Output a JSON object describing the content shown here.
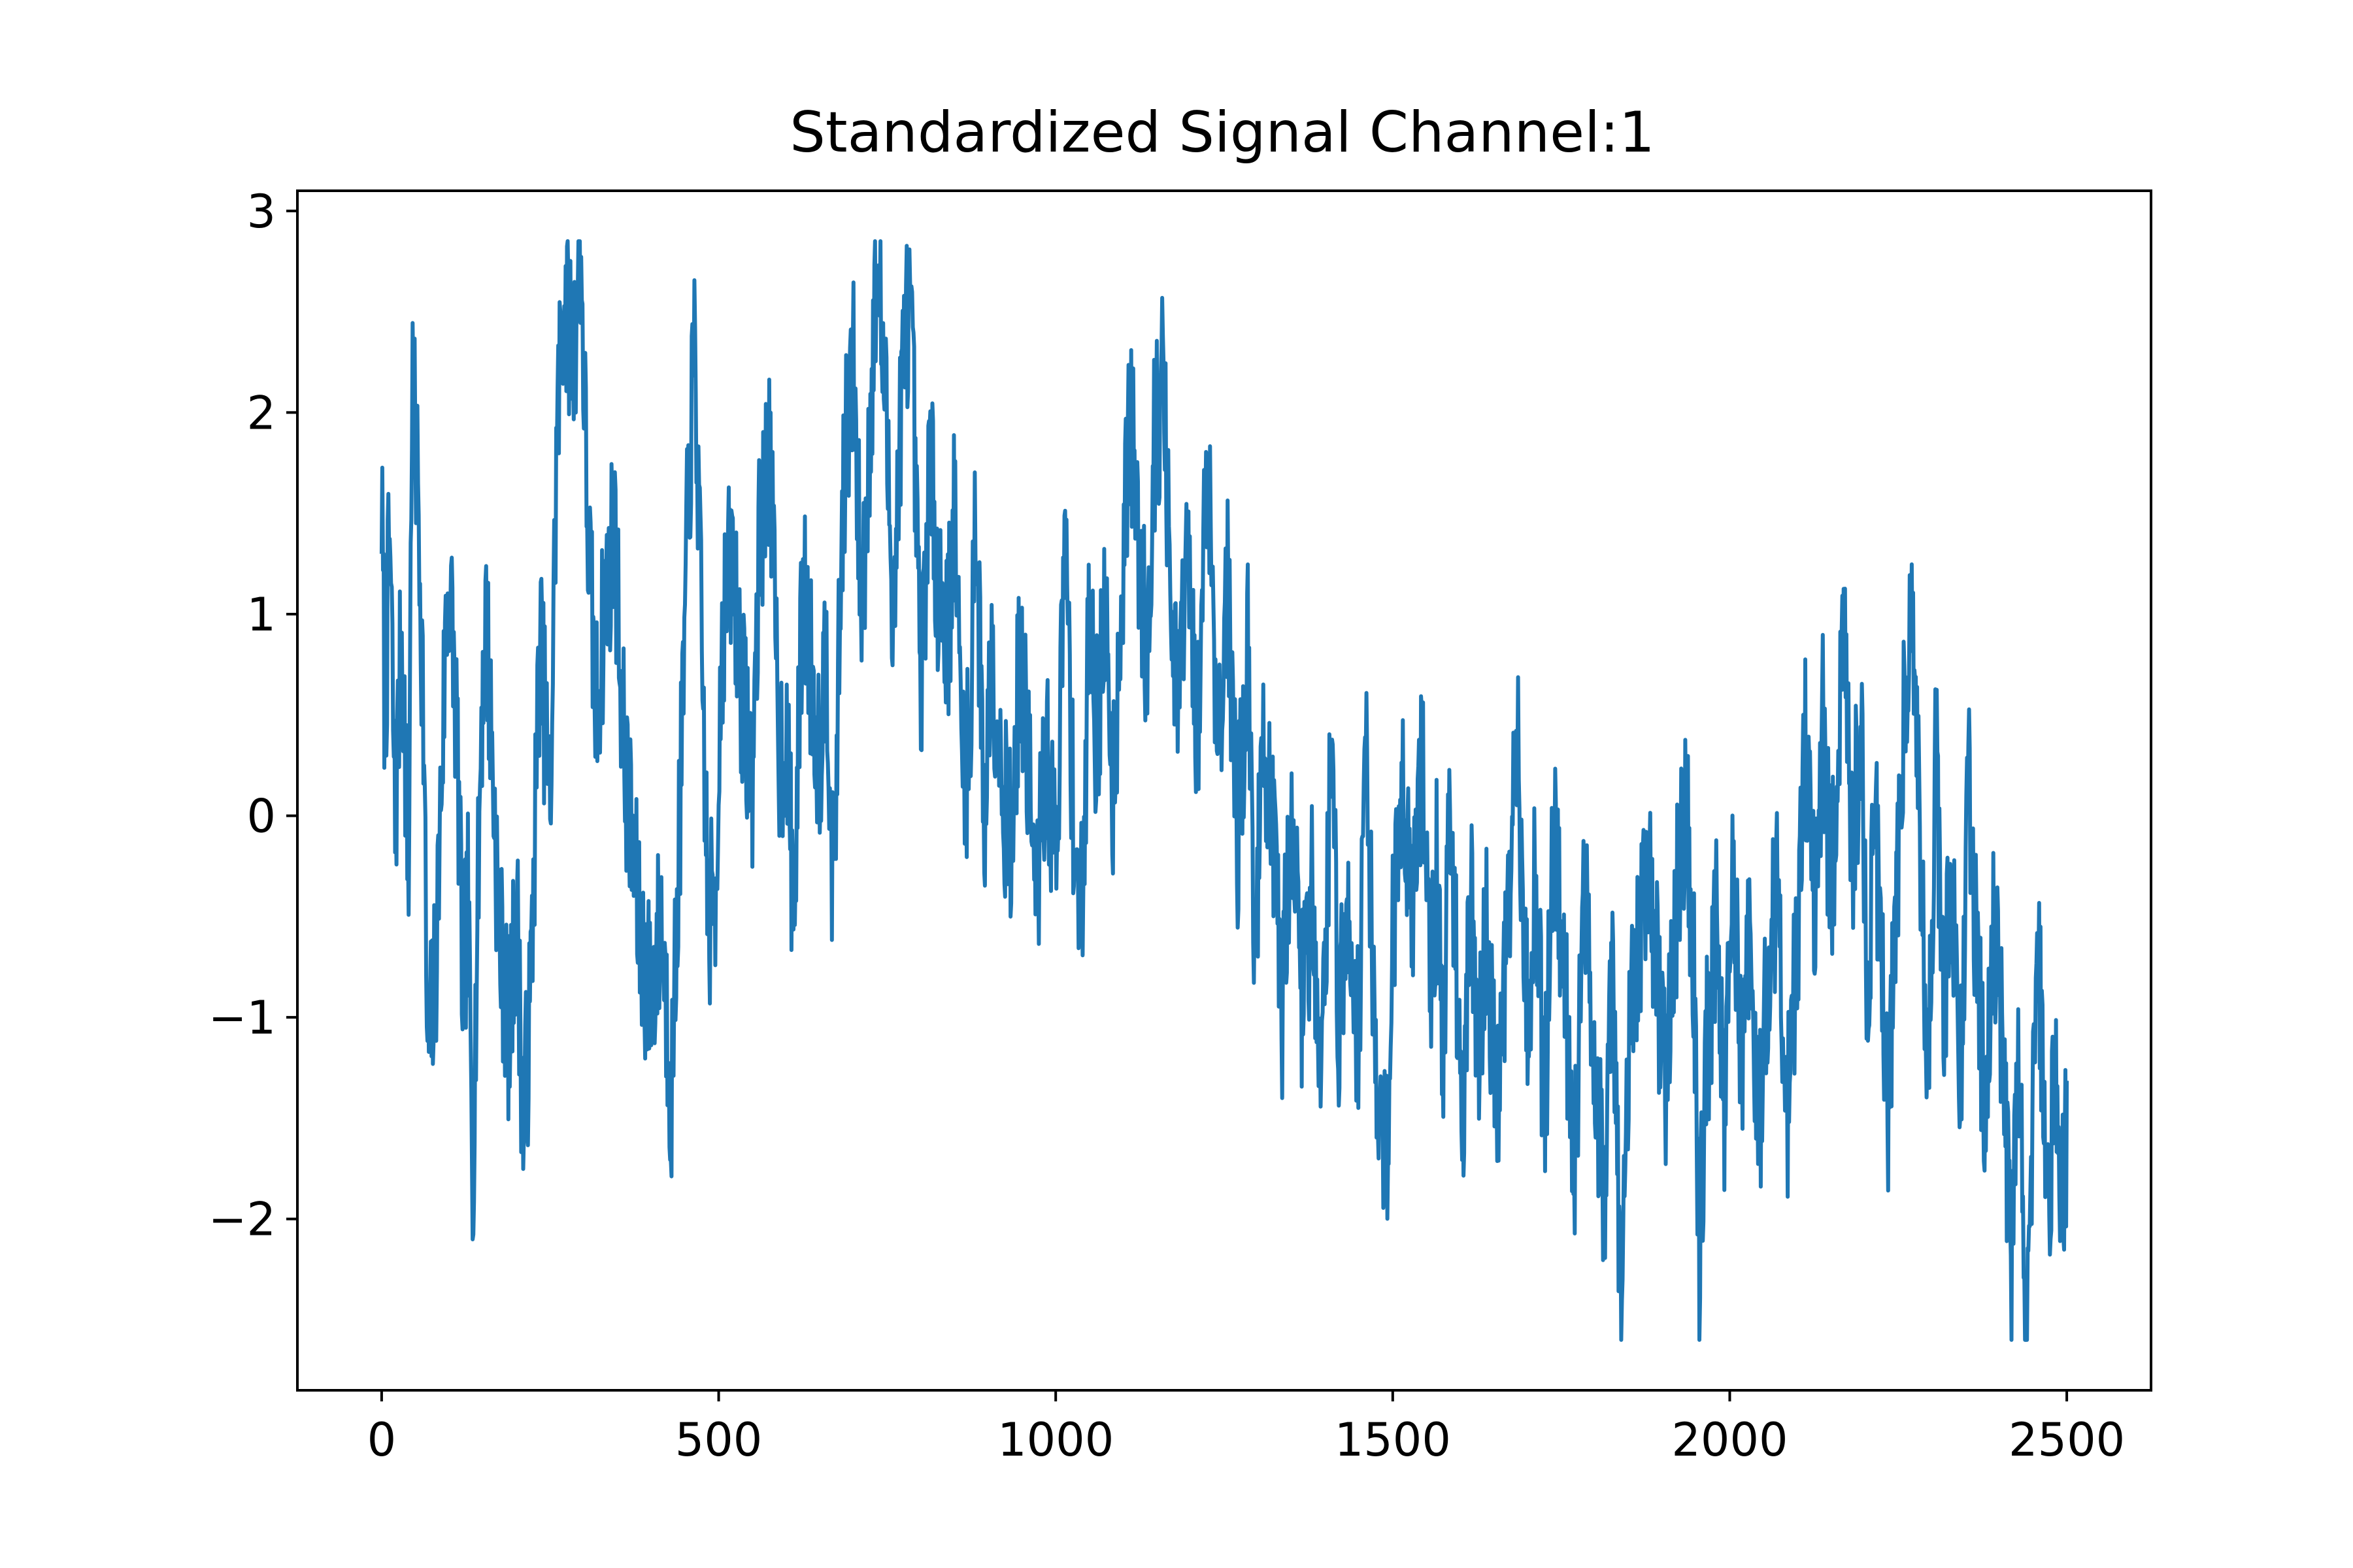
{
  "chart_data": {
    "type": "line",
    "title": "Standardized Signal Channel:1",
    "xlabel": "",
    "ylabel": "",
    "xlim": [
      -125,
      2625
    ],
    "ylim": [
      -2.85,
      3.1
    ],
    "x_ticks": [
      0,
      500,
      1000,
      1500,
      2000,
      2500
    ],
    "x_tick_labels": [
      "0",
      "500",
      "1000",
      "1500",
      "2000",
      "2500"
    ],
    "y_ticks": [
      -2,
      -1,
      0,
      1,
      2,
      3
    ],
    "y_tick_labels": [
      "−2",
      "−1",
      "0",
      "1",
      "2",
      "3"
    ],
    "grid": false,
    "legend": false,
    "series_color": "#1f77b4",
    "x_start": 0,
    "x_step": 1,
    "y_anchors": [
      [
        0,
        1.55
      ],
      [
        5,
        0.45
      ],
      [
        12,
        1.42
      ],
      [
        20,
        -0.05
      ],
      [
        30,
        0.95
      ],
      [
        40,
        -0.35
      ],
      [
        45,
        2.15
      ],
      [
        55,
        1.5
      ],
      [
        62,
        0.5
      ],
      [
        68,
        -1.25
      ],
      [
        80,
        -0.8
      ],
      [
        95,
        0.9
      ],
      [
        100,
        1.2
      ],
      [
        112,
        0.4
      ],
      [
        120,
        -0.85
      ],
      [
        128,
        -0.45
      ],
      [
        135,
        -1.8
      ],
      [
        148,
        0.5
      ],
      [
        155,
        1.0
      ],
      [
        175,
        -0.6
      ],
      [
        190,
        -1.1
      ],
      [
        200,
        -0.4
      ],
      [
        210,
        -1.55
      ],
      [
        220,
        -1.0
      ],
      [
        235,
        0.9
      ],
      [
        250,
        0.0
      ],
      [
        260,
        1.9
      ],
      [
        270,
        2.6
      ],
      [
        285,
        2.3
      ],
      [
        295,
        2.85
      ],
      [
        305,
        1.5
      ],
      [
        318,
        0.5
      ],
      [
        330,
        1.0
      ],
      [
        345,
        1.45
      ],
      [
        360,
        0.3
      ],
      [
        370,
        -0.1
      ],
      [
        385,
        -0.65
      ],
      [
        400,
        -0.9
      ],
      [
        415,
        -0.5
      ],
      [
        430,
        -1.4
      ],
      [
        445,
        0.3
      ],
      [
        455,
        1.6
      ],
      [
        465,
        2.35
      ],
      [
        472,
        1.2
      ],
      [
        485,
        -0.55
      ],
      [
        495,
        -0.4
      ],
      [
        505,
        0.9
      ],
      [
        520,
        1.3
      ],
      [
        535,
        0.6
      ],
      [
        550,
        0.2
      ],
      [
        560,
        1.3
      ],
      [
        575,
        1.85
      ],
      [
        590,
        0.3
      ],
      [
        600,
        0.4
      ],
      [
        612,
        -0.5
      ],
      [
        625,
        1.2
      ],
      [
        640,
        0.6
      ],
      [
        650,
        0.3
      ],
      [
        660,
        0.9
      ],
      [
        670,
        -0.45
      ],
      [
        685,
        1.7
      ],
      [
        700,
        2.2
      ],
      [
        712,
        1.0
      ],
      [
        720,
        1.6
      ],
      [
        735,
        2.75
      ],
      [
        745,
        2.2
      ],
      [
        760,
        1.0
      ],
      [
        770,
        2.0
      ],
      [
        782,
        2.6
      ],
      [
        790,
        1.9
      ],
      [
        800,
        0.5
      ],
      [
        812,
        1.8
      ],
      [
        825,
        1.2
      ],
      [
        840,
        0.9
      ],
      [
        850,
        1.5
      ],
      [
        860,
        0.4
      ],
      [
        872,
        0.2
      ],
      [
        880,
        1.6
      ],
      [
        895,
        -0.05
      ],
      [
        905,
        0.9
      ],
      [
        920,
        0.2
      ],
      [
        935,
        -0.2
      ],
      [
        945,
        0.7
      ],
      [
        960,
        0.3
      ],
      [
        970,
        -0.5
      ],
      [
        985,
        0.3
      ],
      [
        1000,
        -0.2
      ],
      [
        1015,
        1.4
      ],
      [
        1025,
        0.1
      ],
      [
        1040,
        -0.6
      ],
      [
        1050,
        1.2
      ],
      [
        1060,
        0.4
      ],
      [
        1075,
        1.0
      ],
      [
        1085,
        0.1
      ],
      [
        1095,
        0.9
      ],
      [
        1110,
        2.0
      ],
      [
        1122,
        1.4
      ],
      [
        1135,
        0.8
      ],
      [
        1145,
        1.8
      ],
      [
        1160,
        2.2
      ],
      [
        1170,
        1.0
      ],
      [
        1180,
        0.5
      ],
      [
        1195,
        1.3
      ],
      [
        1210,
        0.3
      ],
      [
        1225,
        1.9
      ],
      [
        1240,
        0.4
      ],
      [
        1255,
        1.1
      ],
      [
        1270,
        -0.1
      ],
      [
        1285,
        0.8
      ],
      [
        1295,
        -0.6
      ],
      [
        1310,
        0.4
      ],
      [
        1325,
        -0.3
      ],
      [
        1335,
        -1.0
      ],
      [
        1350,
        0.1
      ],
      [
        1365,
        -0.9
      ],
      [
        1380,
        -0.4
      ],
      [
        1395,
        -1.2
      ],
      [
        1410,
        0.4
      ],
      [
        1420,
        -1.05
      ],
      [
        1435,
        -0.5
      ],
      [
        1450,
        -1.1
      ],
      [
        1460,
        0.5
      ],
      [
        1475,
        -1.3
      ],
      [
        1490,
        -1.75
      ],
      [
        1500,
        -0.6
      ],
      [
        1515,
        0.2
      ],
      [
        1530,
        -0.4
      ],
      [
        1545,
        0.3
      ],
      [
        1555,
        -0.9
      ],
      [
        1565,
        -0.3
      ],
      [
        1575,
        -1.2
      ],
      [
        1585,
        0.05
      ],
      [
        1595,
        -0.8
      ],
      [
        1605,
        -1.4
      ],
      [
        1615,
        -0.35
      ],
      [
        1625,
        -1.2
      ],
      [
        1640,
        -0.6
      ],
      [
        1655,
        -1.5
      ],
      [
        1670,
        -0.5
      ],
      [
        1685,
        0.3
      ],
      [
        1700,
        -1.0
      ],
      [
        1712,
        -0.3
      ],
      [
        1725,
        -1.5
      ],
      [
        1740,
        0.0
      ],
      [
        1755,
        -0.8
      ],
      [
        1770,
        -1.7
      ],
      [
        1785,
        -0.4
      ],
      [
        1800,
        -1.2
      ],
      [
        1815,
        -1.9
      ],
      [
        1825,
        -0.7
      ],
      [
        1840,
        -2.5
      ],
      [
        1852,
        -1.1
      ],
      [
        1865,
        -0.6
      ],
      [
        1880,
        -0.2
      ],
      [
        1892,
        -0.8
      ],
      [
        1905,
        -1.3
      ],
      [
        1920,
        -0.5
      ],
      [
        1935,
        0.1
      ],
      [
        1948,
        -0.9
      ],
      [
        1955,
        -2.2
      ],
      [
        1965,
        -1.2
      ],
      [
        1980,
        -0.6
      ],
      [
        1992,
        -1.4
      ],
      [
        2005,
        -0.3
      ],
      [
        2018,
        -1.2
      ],
      [
        2030,
        -0.6
      ],
      [
        2042,
        -1.7
      ],
      [
        2055,
        -0.8
      ],
      [
        2070,
        -0.3
      ],
      [
        2085,
        -1.5
      ],
      [
        2100,
        -0.6
      ],
      [
        2112,
        0.3
      ],
      [
        2125,
        -0.5
      ],
      [
        2138,
        0.5
      ],
      [
        2150,
        -0.4
      ],
      [
        2160,
        0.2
      ],
      [
        2170,
        0.8
      ],
      [
        2180,
        -0.2
      ],
      [
        2195,
        0.4
      ],
      [
        2205,
        -0.9
      ],
      [
        2215,
        0.0
      ],
      [
        2225,
        -0.6
      ],
      [
        2235,
        -1.5
      ],
      [
        2248,
        -0.3
      ],
      [
        2260,
        0.6
      ],
      [
        2270,
        1.15
      ],
      [
        2282,
        0.0
      ],
      [
        2295,
        -1.4
      ],
      [
        2305,
        0.4
      ],
      [
        2318,
        -0.9
      ],
      [
        2330,
        -0.3
      ],
      [
        2342,
        -1.3
      ],
      [
        2355,
        0.2
      ],
      [
        2368,
        -0.8
      ],
      [
        2380,
        -1.6
      ],
      [
        2392,
        -0.5
      ],
      [
        2405,
        -1.1
      ],
      [
        2418,
        -2.3
      ],
      [
        2428,
        -1.2
      ],
      [
        2440,
        -2.55
      ],
      [
        2450,
        -1.4
      ],
      [
        2460,
        -0.8
      ],
      [
        2472,
        -1.9
      ],
      [
        2485,
        -1.2
      ],
      [
        2492,
        -2.0
      ],
      [
        2500,
        -1.55
      ]
    ],
    "noise_amplitude": 0.6,
    "noise_seed": 7
  }
}
